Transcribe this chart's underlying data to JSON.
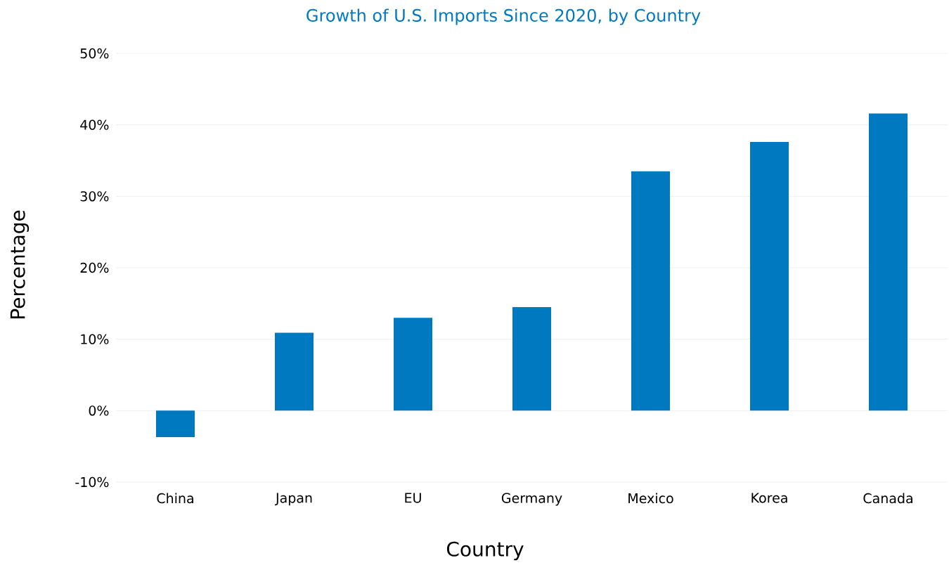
{
  "chart_data": {
    "type": "bar",
    "title": "Growth of U.S. Imports Since 2020, by Country",
    "xlabel": "Country",
    "ylabel": "Percentage",
    "categories": [
      "China",
      "Japan",
      "EU",
      "Germany",
      "Mexico",
      "Korea",
      "Canada"
    ],
    "values": [
      -3.7,
      10.9,
      13.0,
      14.5,
      33.5,
      37.6,
      41.6
    ],
    "color": "#0079c1",
    "ylim": [
      -10,
      50
    ],
    "yticks": [
      {
        "value": -10,
        "label": "-10%"
      },
      {
        "value": 0,
        "label": "0%"
      },
      {
        "value": 10,
        "label": "10%"
      },
      {
        "value": 20,
        "label": "20%"
      },
      {
        "value": 30,
        "label": "30%"
      },
      {
        "value": 40,
        "label": "40%"
      },
      {
        "value": 50,
        "label": "50%"
      }
    ],
    "grid": "y"
  }
}
